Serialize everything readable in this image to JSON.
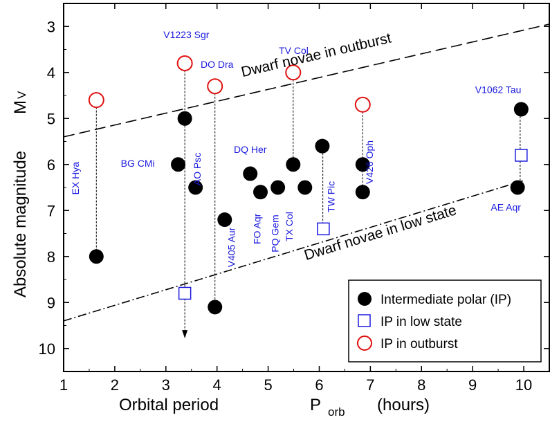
{
  "chart_data": {
    "type": "scatter",
    "xlabel": "Orbital  period",
    "xlabel_symbol": "P",
    "xlabel_sub": "orb",
    "xlabel_unit": "(hours)",
    "ylabel": "Absolute  magnitude",
    "ylabel_symbol": "M",
    "ylabel_sub": "V",
    "xlim": [
      1,
      10.5
    ],
    "ylim": [
      10.5,
      2.5
    ],
    "y_inverted": true,
    "xticks": [
      1,
      2,
      3,
      4,
      5,
      6,
      7,
      8,
      9,
      10
    ],
    "yticks": [
      3,
      4,
      5,
      6,
      7,
      8,
      9,
      10
    ],
    "grid": false,
    "legend_position": "bottom-right",
    "legend": [
      {
        "label": "Intermediate polar (IP)",
        "marker": "filled-circle",
        "color": "#000000"
      },
      {
        "label": "IP in low state",
        "marker": "open-square",
        "color": "#1a1adf"
      },
      {
        "label": "IP in outburst",
        "marker": "open-circle",
        "color": "#e01010"
      }
    ],
    "series": [
      {
        "name": "Intermediate polar (IP)",
        "points": [
          {
            "x": 1.64,
            "y": 8.0
          },
          {
            "x": 3.24,
            "y": 6.0
          },
          {
            "x": 3.37,
            "y": 5.0
          },
          {
            "x": 3.58,
            "y": 6.5
          },
          {
            "x": 3.96,
            "y": 9.1
          },
          {
            "x": 4.15,
            "y": 7.2
          },
          {
            "x": 4.65,
            "y": 6.2
          },
          {
            "x": 4.85,
            "y": 6.6
          },
          {
            "x": 5.19,
            "y": 6.5
          },
          {
            "x": 5.49,
            "y": 6.0
          },
          {
            "x": 5.72,
            "y": 6.5
          },
          {
            "x": 6.06,
            "y": 5.6
          },
          {
            "x": 6.85,
            "y": 6.0
          },
          {
            "x": 6.85,
            "y": 6.6
          },
          {
            "x": 9.88,
            "y": 6.5
          },
          {
            "x": 9.95,
            "y": 4.8
          }
        ]
      },
      {
        "name": "IP in low state",
        "points": [
          {
            "x": 3.37,
            "y": 8.8
          },
          {
            "x": 6.08,
            "y": 7.4
          },
          {
            "x": 9.95,
            "y": 5.8
          }
        ]
      },
      {
        "name": "IP in outburst",
        "points": [
          {
            "x": 1.64,
            "y": 4.6
          },
          {
            "x": 3.37,
            "y": 3.8
          },
          {
            "x": 3.96,
            "y": 4.3
          },
          {
            "x": 5.49,
            "y": 4.0
          },
          {
            "x": 6.85,
            "y": 4.7
          }
        ]
      }
    ],
    "connectors": [
      {
        "x": 1.64,
        "y1": 4.6,
        "y2": 8.0
      },
      {
        "x": 3.37,
        "y1": 3.8,
        "y2": 9.75,
        "arrow": true
      },
      {
        "x": 3.96,
        "y1": 4.3,
        "y2": 9.1
      },
      {
        "x": 5.49,
        "y1": 4.0,
        "y2": 6.0
      },
      {
        "x": 6.07,
        "y1": 5.6,
        "y2": 7.4
      },
      {
        "x": 6.85,
        "y1": 4.7,
        "y2": 6.6
      },
      {
        "x": 9.93,
        "y1": 4.8,
        "y2": 6.5
      }
    ],
    "reference_lines": [
      {
        "label": "Dwarf novae in outburst",
        "style": "dashed",
        "x1": 1.0,
        "y1": 5.4,
        "x2": 10.5,
        "y2": 2.95
      },
      {
        "label": "Dwarf novae in low state",
        "style": "dash-dot",
        "x1": 1.0,
        "y1": 9.4,
        "x2": 10.0,
        "y2": 6.35
      }
    ],
    "star_labels": [
      {
        "text": "EX Hya",
        "x": 1.3,
        "y": 6.3,
        "rotated": true
      },
      {
        "text": "V1223 Sgr",
        "x": 3.4,
        "y": 3.25,
        "rotated": false
      },
      {
        "text": "DO Dra",
        "x": 4.0,
        "y": 3.9,
        "rotated": false
      },
      {
        "text": "BG CMi",
        "x": 2.45,
        "y": 6.05,
        "rotated": false
      },
      {
        "text": "AO Psc",
        "x": 3.68,
        "y": 6.1,
        "rotated": true
      },
      {
        "text": "V405 Aur",
        "x": 4.35,
        "y": 7.8,
        "rotated": true
      },
      {
        "text": "DQ Her",
        "x": 4.65,
        "y": 5.75,
        "rotated": false
      },
      {
        "text": "FO Aqr",
        "x": 4.85,
        "y": 7.4,
        "rotated": true
      },
      {
        "text": "PQ Gem",
        "x": 5.2,
        "y": 7.5,
        "rotated": true
      },
      {
        "text": "TX Col",
        "x": 5.48,
        "y": 7.35,
        "rotated": true
      },
      {
        "text": "TV Col",
        "x": 5.5,
        "y": 3.6,
        "rotated": false
      },
      {
        "text": "TW Pic",
        "x": 6.3,
        "y": 6.7,
        "rotated": true
      },
      {
        "text": "V426 Oph",
        "x": 7.05,
        "y": 5.95,
        "rotated": true
      },
      {
        "text": "V1062 Tau",
        "x": 9.5,
        "y": 4.45,
        "rotated": false
      },
      {
        "text": "AE Aqr",
        "x": 9.65,
        "y": 7.0,
        "rotated": false
      }
    ]
  }
}
